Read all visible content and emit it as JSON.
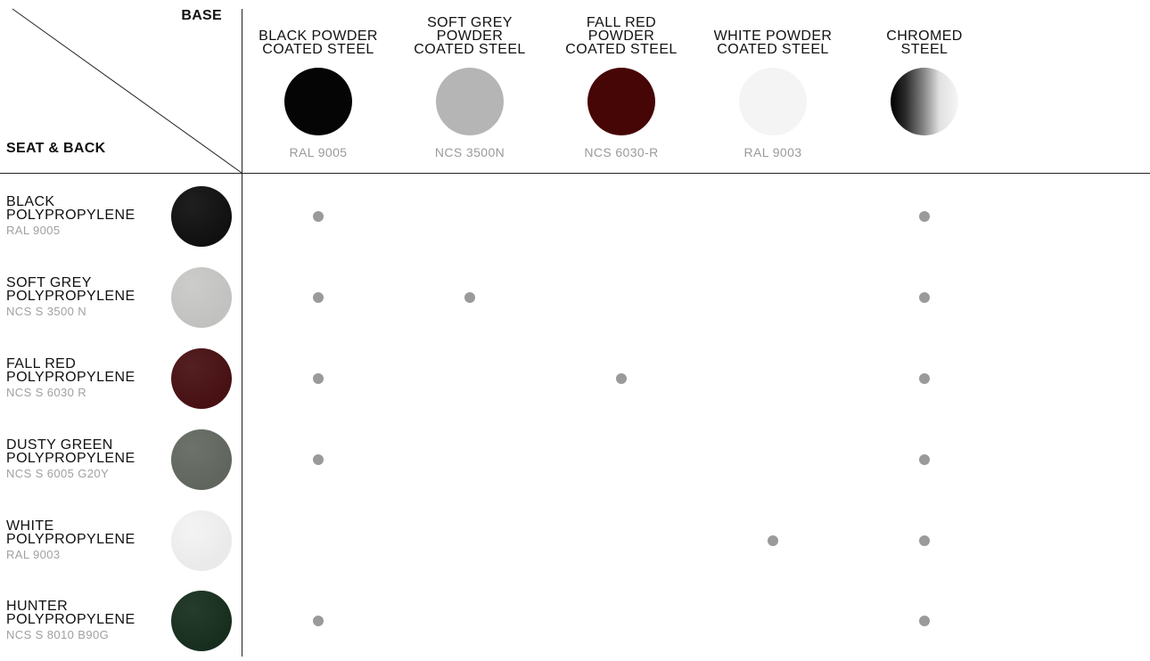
{
  "header": {
    "base_label": "BASE",
    "seat_label": "SEAT & BACK"
  },
  "bases": [
    {
      "name": "BLACK POWDER\nCOATED STEEL",
      "code": "RAL 9005",
      "color": "#050505"
    },
    {
      "name": "SOFT GREY\nPOWDER\nCOATED STEEL",
      "code": "NCS 3500N",
      "color": "#b5b5b5"
    },
    {
      "name": "FALL RED\nPOWDER\nCOATED STEEL",
      "code": "NCS 6030-R",
      "color": "#470606"
    },
    {
      "name": "WHITE POWDER\nCOATED STEEL",
      "code": "RAL 9003",
      "color": "#f4f4f4"
    },
    {
      "name": "CHROMED\nSTEEL",
      "code": "",
      "color": "chrome"
    }
  ],
  "seats": [
    {
      "name": "BLACK\nPOLYPROPYLENE",
      "code": "RAL 9005",
      "color": "#111111",
      "available": [
        true,
        false,
        false,
        false,
        true
      ]
    },
    {
      "name": "SOFT GREY\nPOLYPROPYLENE",
      "code": "NCS S 3500 N",
      "color": "#c9c9c7",
      "available": [
        true,
        true,
        false,
        false,
        true
      ]
    },
    {
      "name": "FALL RED\nPOLYPROPYLENE",
      "code": "NCS S 6030 R",
      "color": "#4a1214",
      "available": [
        true,
        false,
        true,
        false,
        true
      ]
    },
    {
      "name": "DUSTY GREEN\nPOLYPROPYLENE",
      "code": "NCS S 6005 G20Y",
      "color": "#646a62",
      "available": [
        true,
        false,
        false,
        false,
        true
      ]
    },
    {
      "name": "WHITE\nPOLYPROPYLENE",
      "code": "RAL 9003",
      "color": "#f3f3f3",
      "available": [
        false,
        false,
        false,
        true,
        true
      ]
    },
    {
      "name": "HUNTER\nPOLYPROPYLENE",
      "code": "NCS S 8010 B90G",
      "color": "#18301f",
      "available": [
        true,
        false,
        false,
        false,
        true
      ]
    }
  ],
  "colors": {
    "dot": "#9a9a9a",
    "muted_text": "#9a9a9a",
    "rule": "#222222"
  }
}
